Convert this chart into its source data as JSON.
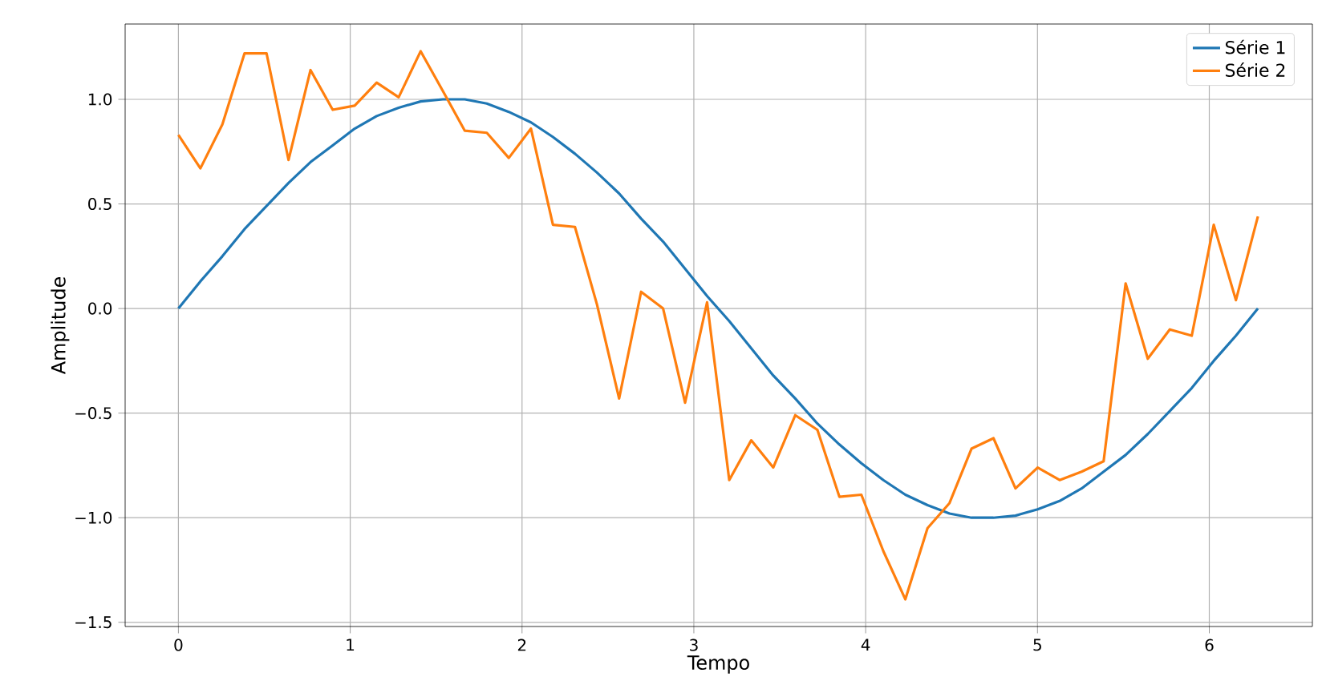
{
  "chart_data": {
    "type": "line",
    "xlabel": "Tempo",
    "ylabel": "Amplitude",
    "x": [
      0,
      0.128,
      0.256,
      0.385,
      0.513,
      0.641,
      0.769,
      0.898,
      1.026,
      1.154,
      1.282,
      1.41,
      1.539,
      1.667,
      1.795,
      1.923,
      2.052,
      2.18,
      2.308,
      2.436,
      2.565,
      2.693,
      2.821,
      2.949,
      3.077,
      3.206,
      3.334,
      3.462,
      3.59,
      3.719,
      3.847,
      3.975,
      4.103,
      4.231,
      4.36,
      4.488,
      4.616,
      4.744,
      4.872,
      5.001,
      5.129,
      5.257,
      5.385,
      5.513,
      5.642,
      5.77,
      5.898,
      6.026,
      6.155,
      6.283
    ],
    "series": [
      {
        "name": "Série 1",
        "color": "#1f77b4",
        "values": [
          0,
          0.13,
          0.25,
          0.38,
          0.49,
          0.6,
          0.7,
          0.78,
          0.86,
          0.92,
          0.96,
          0.99,
          1.0,
          1.0,
          0.98,
          0.94,
          0.89,
          0.82,
          0.74,
          0.65,
          0.55,
          0.43,
          0.32,
          0.19,
          0.06,
          -0.06,
          -0.19,
          -0.32,
          -0.43,
          -0.55,
          -0.65,
          -0.74,
          -0.82,
          -0.89,
          -0.94,
          -0.98,
          -1.0,
          -1.0,
          -0.99,
          -0.96,
          -0.92,
          -0.86,
          -0.78,
          -0.7,
          -0.6,
          -0.49,
          -0.38,
          -0.25,
          -0.13,
          0
        ]
      },
      {
        "name": "Série 2",
        "color": "#ff7f0e",
        "values": [
          0.83,
          0.67,
          0.88,
          1.22,
          1.22,
          0.71,
          1.14,
          0.95,
          0.97,
          1.08,
          1.01,
          1.23,
          1.04,
          0.85,
          0.84,
          0.72,
          0.86,
          0.4,
          0.39,
          0.02,
          -0.43,
          0.08,
          0.0,
          -0.45,
          0.03,
          -0.82,
          -0.63,
          -0.76,
          -0.51,
          -0.58,
          -0.9,
          -0.89,
          -1.16,
          -1.39,
          -1.05,
          -0.93,
          -0.67,
          -0.62,
          -0.86,
          -0.76,
          -0.82,
          -0.78,
          -0.73,
          0.12,
          -0.24,
          -0.1,
          -0.13,
          0.4,
          0.04,
          0.44
        ]
      }
    ],
    "xlim": [
      -0.31,
      6.6
    ],
    "ylim": [
      -1.52,
      1.36
    ],
    "xticks": [
      0,
      1,
      2,
      3,
      4,
      5,
      6
    ],
    "yticks": [
      {
        "value": -1.5,
        "label": "−1.5"
      },
      {
        "value": -1,
        "label": "−1.0"
      },
      {
        "value": -0.5,
        "label": "−0.5"
      },
      {
        "value": 0,
        "label": "0.0"
      },
      {
        "value": 0.5,
        "label": "0.5"
      },
      {
        "value": 1,
        "label": "1.0"
      }
    ],
    "grid": true,
    "legend": "top right",
    "marker": "none",
    "line_style": "solid"
  }
}
